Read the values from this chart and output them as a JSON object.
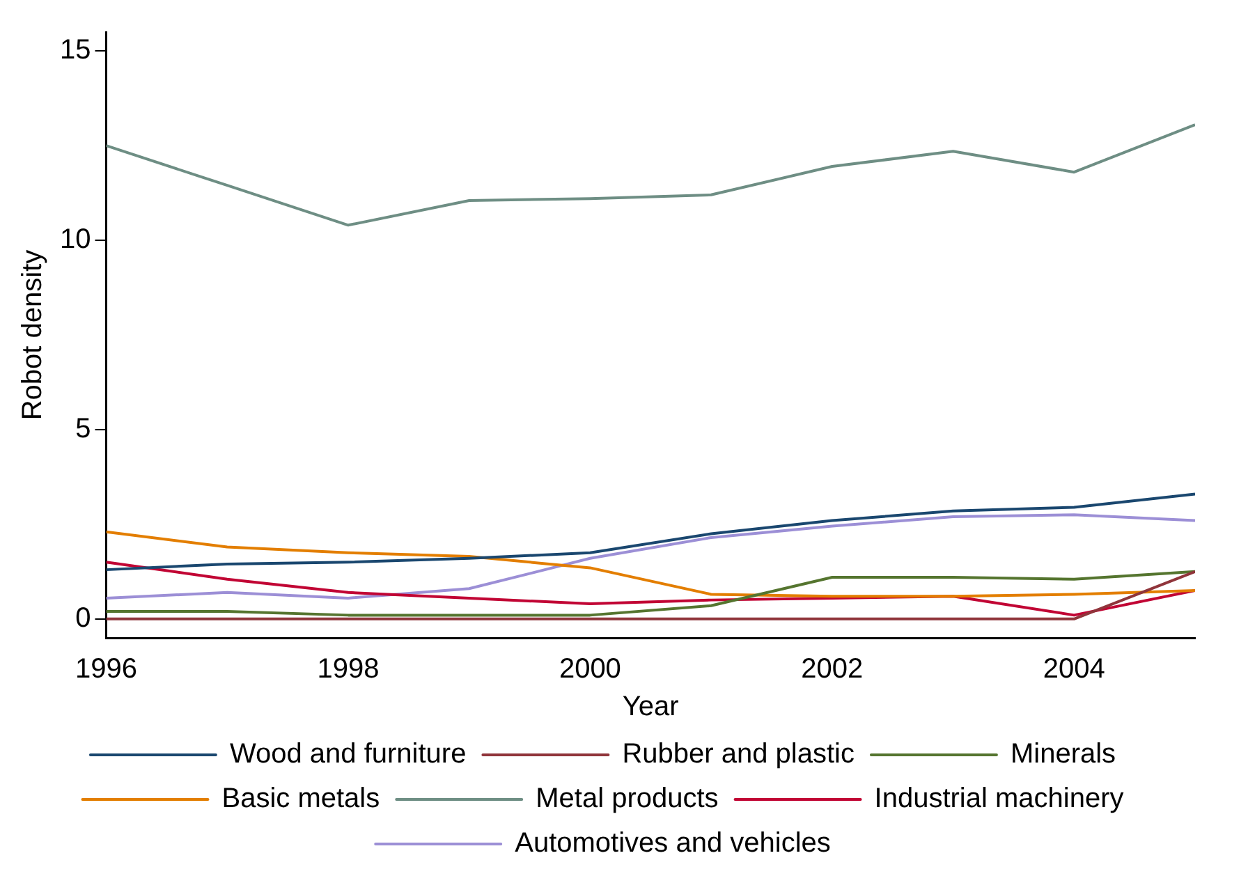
{
  "chart_data": {
    "type": "line",
    "xlabel": "Year",
    "ylabel": "Robot density",
    "x": [
      1996,
      1997,
      1998,
      1999,
      2000,
      2001,
      2002,
      2003,
      2004,
      2005
    ],
    "xlim": [
      1996,
      2005
    ],
    "xticks": [
      1996,
      1998,
      2000,
      2002,
      2004
    ],
    "ylim": [
      -0.5,
      15.5
    ],
    "yticks": [
      0,
      5,
      10,
      15
    ],
    "grid": false,
    "legend": "bottom",
    "marker": "none",
    "line_style": "solid",
    "series": [
      {
        "name": "Wood and furniture",
        "color": "#1a476f",
        "values": [
          1.3,
          1.45,
          1.5,
          1.6,
          1.75,
          2.25,
          2.6,
          2.85,
          2.95,
          3.3
        ]
      },
      {
        "name": "Rubber and plastic",
        "color": "#90353b",
        "values": [
          0,
          0,
          0,
          0,
          0,
          0,
          0,
          0,
          0,
          1.25
        ]
      },
      {
        "name": "Minerals",
        "color": "#55752f",
        "values": [
          0.2,
          0.2,
          0.1,
          0.1,
          0.1,
          0.35,
          1.1,
          1.1,
          1.05,
          1.25
        ]
      },
      {
        "name": "Basic metals",
        "color": "#e37e00",
        "values": [
          2.3,
          1.9,
          1.75,
          1.65,
          1.35,
          0.65,
          0.6,
          0.6,
          0.65,
          0.75
        ]
      },
      {
        "name": "Metal products",
        "color": "#6e8e84",
        "values": [
          12.5,
          11.45,
          10.4,
          11.05,
          11.1,
          11.2,
          11.95,
          12.35,
          11.8,
          13.05
        ]
      },
      {
        "name": "Industrial machinery",
        "color": "#c10534",
        "values": [
          1.5,
          1.05,
          0.7,
          0.55,
          0.4,
          0.5,
          0.55,
          0.6,
          0.1,
          0.75
        ]
      },
      {
        "name": "Automotives and vehicles",
        "color": "#9c8fd6",
        "values": [
          0.55,
          0.7,
          0.55,
          0.8,
          1.6,
          2.15,
          2.45,
          2.7,
          2.75,
          2.6
        ]
      }
    ]
  }
}
